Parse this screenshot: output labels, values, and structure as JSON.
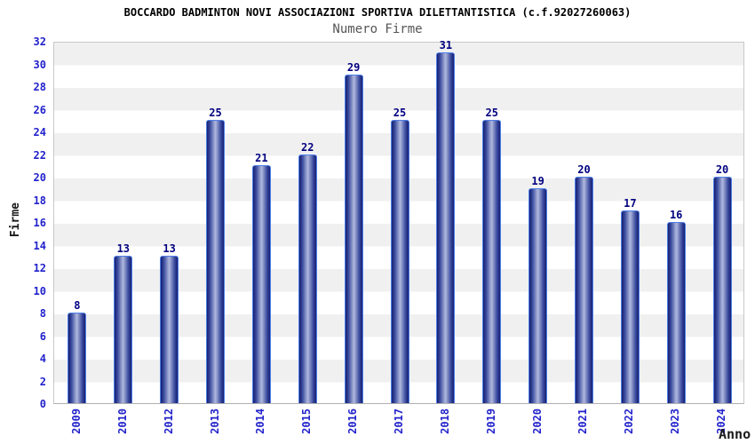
{
  "header": {
    "title": "BOCCARDO BADMINTON NOVI ASSOCIAZIONI SPORTIVA DILETTANTISTICA (c.f.92027260063)",
    "subtitle": "Numero Firme"
  },
  "chart_data": {
    "type": "bar",
    "title": "Numero Firme",
    "categories": [
      "2009",
      "2010",
      "2012",
      "2013",
      "2014",
      "2015",
      "2016",
      "2017",
      "2018",
      "2019",
      "2020",
      "2021",
      "2022",
      "2023",
      "2024"
    ],
    "values": [
      8,
      13,
      13,
      25,
      21,
      22,
      29,
      25,
      31,
      25,
      19,
      20,
      17,
      16,
      20
    ],
    "xlabel": "Anno",
    "ylabel": "Firme",
    "ylim": [
      0,
      32
    ],
    "ytick_step": 2,
    "grid": "horizontal-alternating-bands",
    "legend": "none",
    "bar_value_labels": true
  },
  "colors": {
    "tick_label": "#2222cc",
    "value_label": "#000080",
    "bar_border": "#4d7ee8",
    "bar_edge_dark": "#161f70",
    "bar_mid": "#3a4a9e",
    "bar_highlight": "#aab3da",
    "band_gray": "#f0f0f0",
    "band_white": "#ffffff",
    "plot_border": "#c8c8c8",
    "title": "#000000",
    "subtitle": "#555555",
    "axis_label": "#1a1a1a"
  }
}
